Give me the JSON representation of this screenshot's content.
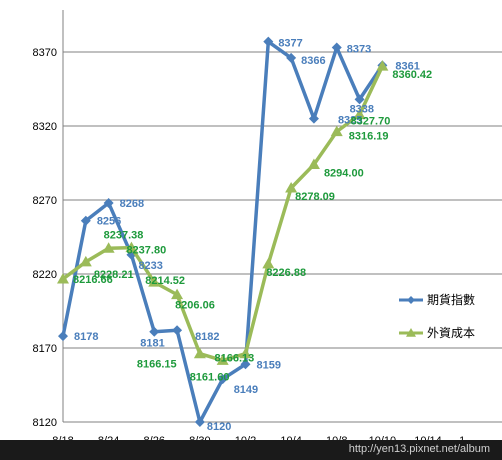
{
  "colors": {
    "futures": "#4a7ebb",
    "foreign": "#9bbb59",
    "futures_label": "#4a7ebb",
    "foreign_label": "#1e9a3c",
    "grid": "#808080",
    "watermark_bg": "#1a1a1a"
  },
  "watermark": "http://yen13.pixnet.net/album",
  "chart_data": {
    "type": "line",
    "title": "",
    "xlabel": "",
    "ylabel": "",
    "ylim": [
      8120,
      8395
    ],
    "yticks": [
      8120,
      8170,
      8220,
      8270,
      8320,
      8370
    ],
    "xlim": [
      0,
      16
    ],
    "xticks": [
      {
        "pos": 0,
        "label": "8/18"
      },
      {
        "pos": 2,
        "label": "8/24"
      },
      {
        "pos": 4,
        "label": "8/26"
      },
      {
        "pos": 6,
        "label": "8/30"
      },
      {
        "pos": 8,
        "label": "10/2"
      },
      {
        "pos": 10,
        "label": "10/4"
      },
      {
        "pos": 12,
        "label": "10/8"
      },
      {
        "pos": 14,
        "label": "10/10"
      },
      {
        "pos": 16,
        "label": "10/14"
      },
      {
        "pos": 17.5,
        "label": "1"
      }
    ],
    "grid": true,
    "legend_position": "right",
    "series": [
      {
        "name": "期貨指數",
        "key": "futures",
        "marker": "diamond",
        "x": [
          0,
          1,
          2,
          3,
          4,
          5,
          6,
          7,
          8,
          9,
          10,
          11,
          12,
          13,
          14
        ],
        "values": [
          8178,
          8256,
          8268,
          8233,
          8181,
          8182,
          8120,
          8149,
          8159,
          8377,
          8366,
          8325,
          8373,
          8338,
          8361
        ],
        "labels": [
          "8178",
          "8256",
          "8268",
          "8233",
          "8181",
          "8182",
          "8120",
          "8149",
          "8159",
          "8377",
          "8366",
          "8325",
          "8373",
          "8338",
          "8361"
        ]
      },
      {
        "name": "外資成本",
        "key": "foreign",
        "marker": "triangle",
        "x": [
          0,
          1,
          2,
          3,
          4,
          5,
          6,
          7,
          8,
          9,
          10,
          11,
          12,
          13,
          14
        ],
        "values": [
          8216.66,
          8228.21,
          8237.38,
          8237.8,
          8214.52,
          8206.06,
          8166.15,
          8161.6,
          8166.13,
          8226.88,
          8278.09,
          8294.0,
          8316.19,
          8327.7,
          8360.42
        ],
        "labels": [
          "8216.66",
          "8228.21",
          "8237.38",
          "8237.80",
          "8214.52",
          "8206.06",
          "8166.15",
          "8161.60",
          "8166.13",
          "8226.88",
          "8278.09",
          "8294.00",
          "8316.19",
          "8327.70",
          "8360.42"
        ]
      }
    ]
  }
}
